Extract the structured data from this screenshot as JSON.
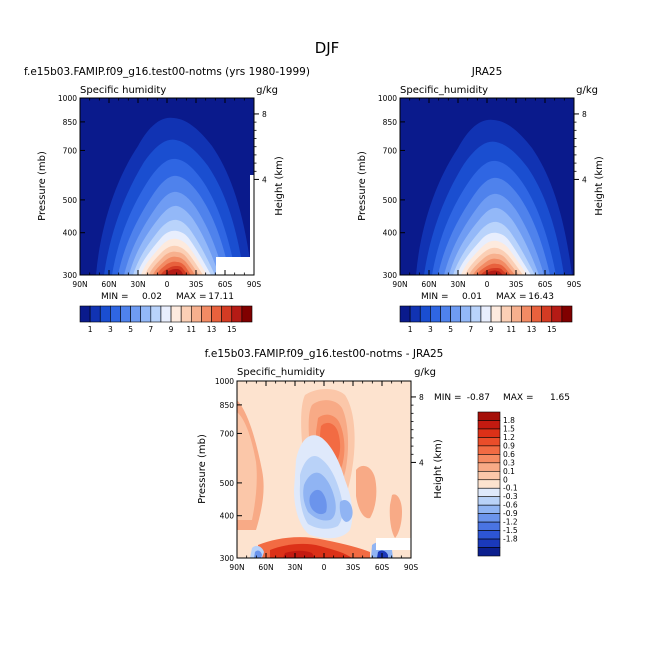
{
  "page": {
    "title": "DJF"
  },
  "chart_data": [
    {
      "type": "heatmap",
      "title": "f.e15b03.FAMIP.f09_g16.test00-notms (yrs 1980-1999)",
      "variable_label": "Specific humidity",
      "units": "g/kg",
      "xlabel": "",
      "ylabel": "Pressure (mb)",
      "ylabel_right": "Height (km)",
      "x_ticks": [
        "90N",
        "60N",
        "30N",
        "0",
        "30S",
        "60S",
        "90S"
      ],
      "y_ticks": [
        "300",
        "400",
        "500",
        "700",
        "850",
        "1000"
      ],
      "height_ticks": [
        "8",
        "4"
      ],
      "xlim": [
        90,
        -90
      ],
      "ylim": [
        1000,
        300
      ],
      "y_scale": "log",
      "min_label": "MIN =",
      "min_value": "0.02",
      "max_label": "MAX =",
      "max_value": "17.11",
      "colorbar_labels": [
        "1",
        "3",
        "5",
        "7",
        "9",
        "11",
        "13",
        "15"
      ],
      "colorbar_colors": [
        "#0a1a8c",
        "#1133b3",
        "#1a4ed0",
        "#2f66e3",
        "#4f82ec",
        "#6f9cf3",
        "#93b8f8",
        "#b9d3fb",
        "#e8eefd",
        "#fdeade",
        "#fbcfb5",
        "#f7b08e",
        "#f28b64",
        "#e8613d",
        "#d43b23",
        "#b51b15",
        "#800000"
      ]
    },
    {
      "type": "heatmap",
      "title": "JRA25",
      "variable_label": "Specific_humidity",
      "units": "g/kg",
      "xlabel": "",
      "ylabel": "Pressure (mb)",
      "ylabel_right": "Height (km)",
      "x_ticks": [
        "90N",
        "60N",
        "30N",
        "0",
        "30S",
        "60S",
        "90S"
      ],
      "y_ticks": [
        "300",
        "400",
        "500",
        "700",
        "850",
        "1000"
      ],
      "height_ticks": [
        "8",
        "4"
      ],
      "xlim": [
        90,
        -90
      ],
      "ylim": [
        1000,
        300
      ],
      "y_scale": "log",
      "min_label": "MIN =",
      "min_value": "0.01",
      "max_label": "MAX =",
      "max_value": "16.43",
      "colorbar_labels": [
        "1",
        "3",
        "5",
        "7",
        "9",
        "11",
        "13",
        "15"
      ],
      "colorbar_colors": [
        "#0a1a8c",
        "#1133b3",
        "#1a4ed0",
        "#2f66e3",
        "#4f82ec",
        "#6f9cf3",
        "#93b8f8",
        "#b9d3fb",
        "#e8eefd",
        "#fdeade",
        "#fbcfb5",
        "#f7b08e",
        "#f28b64",
        "#e8613d",
        "#d43b23",
        "#b51b15",
        "#800000"
      ]
    },
    {
      "type": "heatmap",
      "title": "f.e15b03.FAMIP.f09_g16.test00-notms - JRA25",
      "variable_label": "Specific_humidity",
      "units": "g/kg",
      "xlabel": "",
      "ylabel": "Pressure (mb)",
      "ylabel_right": "Height (km)",
      "x_ticks": [
        "90N",
        "60N",
        "30N",
        "0",
        "30S",
        "60S",
        "90S"
      ],
      "y_ticks": [
        "300",
        "400",
        "500",
        "700",
        "850",
        "1000"
      ],
      "height_ticks": [
        "8",
        "4"
      ],
      "xlim": [
        90,
        -90
      ],
      "ylim": [
        1000,
        300
      ],
      "y_scale": "log",
      "min_label": "MIN =",
      "min_value": "-0.87",
      "max_label": "MAX =",
      "max_value": "1.65",
      "colorbar_labels": [
        "1.8",
        "1.5",
        "1.2",
        "0.9",
        "0.6",
        "0.3",
        "0.1",
        "0",
        "-0.1",
        "-0.3",
        "-0.6",
        "-0.9",
        "-1.2",
        "-1.5",
        "-1.8"
      ],
      "colorbar_colors": [
        "#a50f08",
        "#c41a10",
        "#dc3118",
        "#ea4d2a",
        "#f26b43",
        "#f68b62",
        "#f8aa86",
        "#fbc7a9",
        "#fde3cf",
        "#dfe9fb",
        "#b9d2f8",
        "#90b4f3",
        "#6b94ec",
        "#4a74e2",
        "#2d55d4",
        "#1a39bb",
        "#0c1f8e"
      ]
    }
  ]
}
